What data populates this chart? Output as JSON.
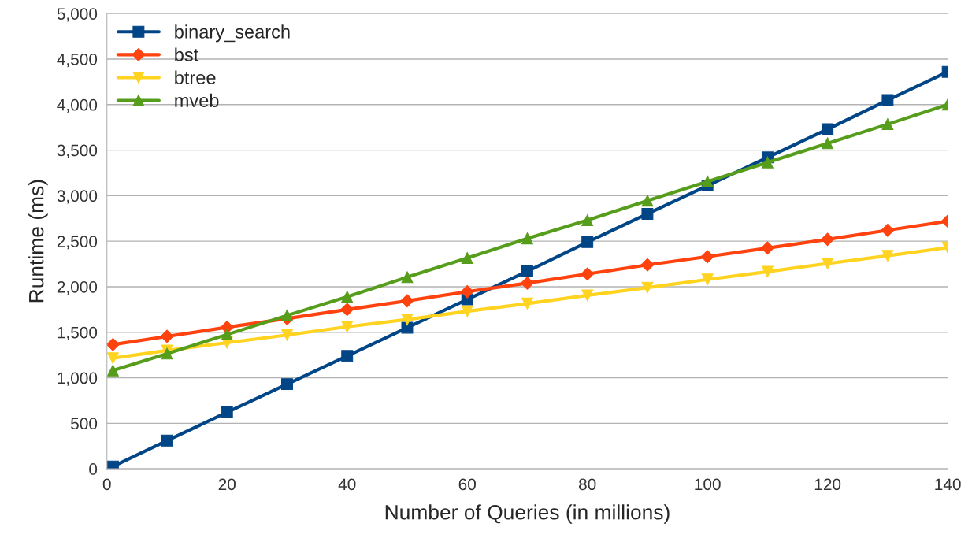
{
  "chart_data": {
    "type": "line",
    "xlabel": "Number of Queries (in millions)",
    "ylabel": "Runtime (ms)",
    "x": [
      1,
      10,
      20,
      30,
      40,
      50,
      60,
      70,
      80,
      90,
      100,
      110,
      120,
      130,
      140
    ],
    "series": [
      {
        "name": "binary_search",
        "color": "#004586",
        "marker": "square",
        "values": [
          25,
          310,
          620,
          930,
          1240,
          1550,
          1860,
          2170,
          2490,
          2800,
          3110,
          3420,
          3730,
          4050,
          4360
        ]
      },
      {
        "name": "bst",
        "color": "#ff420e",
        "marker": "diamond",
        "values": [
          1365,
          1455,
          1555,
          1650,
          1750,
          1845,
          1945,
          2040,
          2140,
          2240,
          2330,
          2425,
          2520,
          2620,
          2720
        ]
      },
      {
        "name": "btree",
        "color": "#ffd320",
        "marker": "triangle_down",
        "values": [
          1215,
          1300,
          1385,
          1470,
          1560,
          1640,
          1730,
          1815,
          1905,
          1990,
          2080,
          2165,
          2255,
          2340,
          2430
        ]
      },
      {
        "name": "mveb",
        "color": "#579d1c",
        "marker": "triangle",
        "values": [
          1080,
          1265,
          1475,
          1685,
          1890,
          2105,
          2315,
          2530,
          2730,
          2945,
          3155,
          3365,
          3575,
          3785,
          4000
        ]
      }
    ],
    "xlim": [
      0,
      140
    ],
    "xticks": [
      0,
      20,
      40,
      60,
      80,
      100,
      120,
      140
    ],
    "ylim": [
      0,
      5000
    ],
    "yticks": [
      0,
      500,
      {
        "value": 1000,
        "label": "1,000"
      },
      {
        "value": 1500,
        "label": "1,500"
      },
      {
        "value": 2000,
        "label": "2,000"
      },
      {
        "value": 2500,
        "label": "2,500"
      },
      {
        "value": 3000,
        "label": "3,000"
      },
      {
        "value": 3500,
        "label": "3,500"
      },
      {
        "value": 4000,
        "label": "4,000"
      },
      {
        "value": 4500,
        "label": "4,500"
      },
      {
        "value": 5000,
        "label": "5,000"
      }
    ],
    "grid": "y",
    "legend": "top left",
    "line_style": "solid"
  }
}
